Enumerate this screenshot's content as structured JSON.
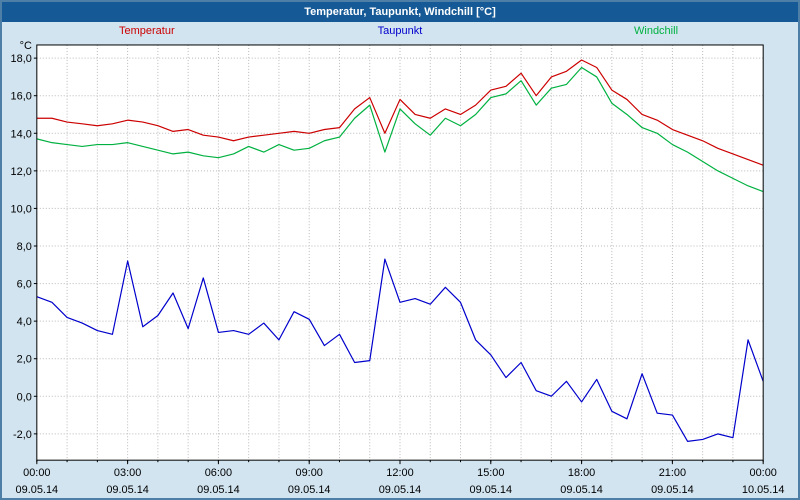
{
  "title": "Temperatur, Taupunkt, Windchill [°C]",
  "legend": [
    {
      "label": "Temperatur",
      "color": "#cc0000"
    },
    {
      "label": "Taupunkt",
      "color": "#0000cc"
    },
    {
      "label": "Windchill",
      "color": "#00b140"
    }
  ],
  "colors": {
    "titlebar": "#155a96",
    "window_background": "#d2e4f0",
    "plot_background": "#ffffff",
    "grid": "#b8b8b8",
    "axis": "#000000",
    "frame": "#4e7fa6"
  },
  "chart_data": {
    "type": "line",
    "title": "Temperatur, Taupunkt, Windchill [°C]",
    "xlabel": "",
    "ylabel": "°C",
    "x_unit": "hours",
    "x_step": 0.5,
    "xlim": [
      0,
      24
    ],
    "ylim": [
      -3.4,
      18.7
    ],
    "grid": "dotted",
    "legend_position": "top",
    "grid_color": "#b8b8b8",
    "y_ticks": [
      {
        "value": 18,
        "label": "18,0"
      },
      {
        "value": 16,
        "label": "16,0"
      },
      {
        "value": 14,
        "label": "14,0"
      },
      {
        "value": 12,
        "label": "12,0"
      },
      {
        "value": 10,
        "label": "10,0"
      },
      {
        "value": 8,
        "label": "8,0"
      },
      {
        "value": 6,
        "label": "6,0"
      },
      {
        "value": 4,
        "label": "4,0"
      },
      {
        "value": 2,
        "label": "2,0"
      },
      {
        "value": 0,
        "label": "0,0"
      },
      {
        "value": -2,
        "label": "-2,0"
      }
    ],
    "x_ticks": [
      {
        "hour": 0,
        "time": "00:00",
        "date": "09.05.14"
      },
      {
        "hour": 3,
        "time": "03:00",
        "date": "09.05.14"
      },
      {
        "hour": 6,
        "time": "06:00",
        "date": "09.05.14"
      },
      {
        "hour": 9,
        "time": "09:00",
        "date": "09.05.14"
      },
      {
        "hour": 12,
        "time": "12:00",
        "date": "09.05.14"
      },
      {
        "hour": 15,
        "time": "15:00",
        "date": "09.05.14"
      },
      {
        "hour": 18,
        "time": "18:00",
        "date": "09.05.14"
      },
      {
        "hour": 21,
        "time": "21:00",
        "date": "09.05.14"
      },
      {
        "hour": 24,
        "time": "00:00",
        "date": "10.05.14"
      }
    ],
    "series": [
      {
        "name": "Temperatur",
        "color": "#cc0000",
        "values": [
          14.8,
          14.8,
          14.6,
          14.5,
          14.4,
          14.5,
          14.7,
          14.6,
          14.4,
          14.1,
          14.2,
          13.9,
          13.8,
          13.6,
          13.8,
          13.9,
          14.0,
          14.1,
          14.0,
          14.2,
          14.3,
          15.3,
          15.9,
          14.0,
          15.8,
          15.0,
          14.8,
          15.3,
          15.0,
          15.5,
          16.3,
          16.5,
          17.2,
          16.0,
          17.0,
          17.3,
          17.9,
          17.5,
          16.3,
          15.8,
          15.0,
          14.7,
          14.2,
          13.9,
          13.6,
          13.2,
          12.9,
          12.6,
          12.3
        ]
      },
      {
        "name": "Taupunkt",
        "color": "#0000cc",
        "values": [
          5.3,
          5.0,
          4.2,
          3.9,
          3.5,
          3.3,
          7.2,
          3.7,
          4.3,
          5.5,
          3.6,
          6.3,
          3.4,
          3.5,
          3.3,
          3.9,
          3.0,
          4.5,
          4.1,
          2.7,
          3.3,
          1.8,
          1.9,
          7.3,
          5.0,
          5.2,
          4.9,
          5.8,
          5.0,
          3.0,
          2.2,
          1.0,
          1.8,
          0.3,
          0.0,
          0.8,
          -0.3,
          0.9,
          -0.8,
          -1.2,
          1.2,
          -0.9,
          -1.0,
          -2.4,
          -2.3,
          -2.0,
          -2.2,
          3.0,
          0.8
        ]
      },
      {
        "name": "Windchill",
        "color": "#00b140",
        "values": [
          13.7,
          13.5,
          13.4,
          13.3,
          13.4,
          13.4,
          13.5,
          13.3,
          13.1,
          12.9,
          13.0,
          12.8,
          12.7,
          12.9,
          13.3,
          13.0,
          13.4,
          13.1,
          13.2,
          13.6,
          13.8,
          14.8,
          15.5,
          13.0,
          15.3,
          14.5,
          13.9,
          14.8,
          14.4,
          15.0,
          15.9,
          16.1,
          16.8,
          15.5,
          16.4,
          16.6,
          17.5,
          17.0,
          15.6,
          15.0,
          14.3,
          14.0,
          13.4,
          13.0,
          12.5,
          12.0,
          11.6,
          11.2,
          10.9
        ]
      }
    ]
  }
}
